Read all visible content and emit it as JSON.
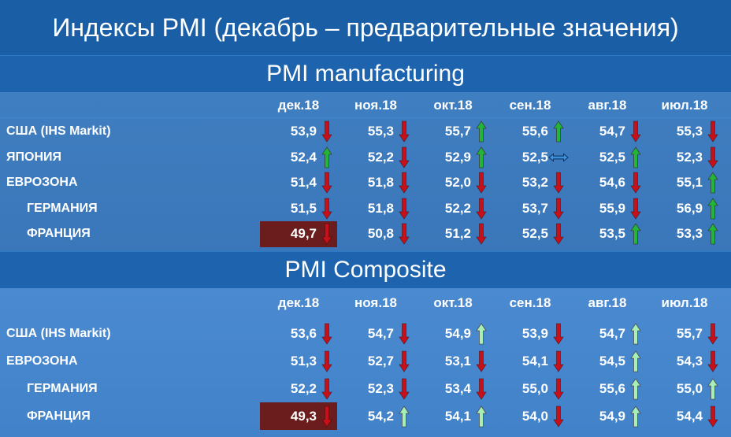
{
  "title": "Индексы PMI (декабрь – предварительные значения)",
  "months": [
    "дек.18",
    "ноя.18",
    "окт.18",
    "сен.18",
    "авг.18",
    "июл.18"
  ],
  "manufacturing": {
    "title": "PMI manufacturing",
    "rows": [
      {
        "label": "США (IHS Markit)",
        "indent": false,
        "values": [
          "53,9",
          "55,3",
          "55,7",
          "55,6",
          "54,7",
          "55,3"
        ],
        "arrows": [
          "down",
          "down",
          "up",
          "up",
          "down",
          "down"
        ]
      },
      {
        "label": "ЯПОНИЯ",
        "indent": false,
        "values": [
          "52,4",
          "52,2",
          "52,9",
          "52,5",
          "52,5",
          "52,3"
        ],
        "arrows": [
          "up",
          "down",
          "up",
          "flat",
          "up",
          "down"
        ]
      },
      {
        "label": "ЕВРОЗОНА",
        "indent": false,
        "values": [
          "51,4",
          "51,8",
          "52,0",
          "53,2",
          "54,6",
          "55,1"
        ],
        "arrows": [
          "down",
          "down",
          "down",
          "down",
          "down",
          "up"
        ]
      },
      {
        "label": "ГЕРМАНИЯ",
        "indent": true,
        "values": [
          "51,5",
          "51,8",
          "52,2",
          "53,7",
          "55,9",
          "56,9"
        ],
        "arrows": [
          "down",
          "down",
          "down",
          "down",
          "down",
          "up"
        ]
      },
      {
        "label": "ФРАНЦИЯ",
        "indent": true,
        "values": [
          "49,7",
          "50,8",
          "51,2",
          "52,5",
          "53,5",
          "53,3"
        ],
        "arrows": [
          "down",
          "down",
          "down",
          "down",
          "up",
          "up"
        ],
        "highlight": 0
      }
    ]
  },
  "composite": {
    "title": "PMI Composite",
    "rows": [
      {
        "label": "США (IHS Markit)",
        "indent": false,
        "values": [
          "53,6",
          "54,7",
          "54,9",
          "53,9",
          "54,7",
          "55,7"
        ],
        "arrows": [
          "down",
          "down",
          "up",
          "down",
          "up",
          "down"
        ]
      },
      {
        "label": "ЕВРОЗОНА",
        "indent": false,
        "values": [
          "51,3",
          "52,7",
          "53,1",
          "54,1",
          "54,5",
          "54,3"
        ],
        "arrows": [
          "down",
          "down",
          "down",
          "down",
          "up",
          "down"
        ]
      },
      {
        "label": "ГЕРМАНИЯ",
        "indent": true,
        "values": [
          "52,2",
          "52,3",
          "53,4",
          "55,0",
          "55,6",
          "55,0"
        ],
        "arrows": [
          "down",
          "down",
          "down",
          "down",
          "up",
          "up"
        ]
      },
      {
        "label": "ФРАНЦИЯ",
        "indent": true,
        "values": [
          "49,3",
          "54,2",
          "54,1",
          "54,0",
          "54,9",
          "54,4"
        ],
        "arrows": [
          "down",
          "up",
          "up",
          "down",
          "up",
          "down"
        ],
        "highlight": 0
      }
    ]
  },
  "colors": {
    "manufacturing_up": "#22b53a",
    "composite_up": "#a6f0b8",
    "down": "#c8101a",
    "flat": "#3d8fd8",
    "highlight": "#6b1c1c"
  }
}
